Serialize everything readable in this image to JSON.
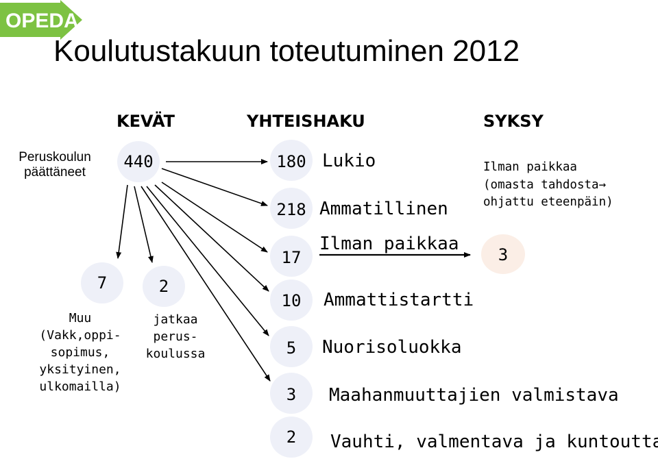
{
  "logo": {
    "text": "OPEDA",
    "color": "#7dc242"
  },
  "title": "Koulutustakuun toteutuminen 2012",
  "headers": {
    "spring": "KEVÄT",
    "joint": "YHTEISHAKU",
    "autumn": "SYKSY"
  },
  "source": {
    "label_line1": "Peruskoulun",
    "label_line2": "päättäneet",
    "value": "440"
  },
  "joint": [
    {
      "value": "180",
      "label": "Lukio"
    },
    {
      "value": "218",
      "label": "Ammatillinen"
    },
    {
      "value": "17",
      "label": "Ilman paikkaa"
    },
    {
      "value": "10",
      "label": "Ammattistartti"
    },
    {
      "value": "5",
      "label": "Nuorisoluokka"
    },
    {
      "value": "3",
      "label": "Maahanmuuttajien valmistava"
    },
    {
      "value": "2",
      "label": "Vauhti, valmentava ja kuntouttava"
    }
  ],
  "other": {
    "value": "7",
    "lines": [
      "Muu",
      "(Vakk,oppi-",
      "sopimus,",
      "yksityinen,",
      "ulkomailla)"
    ]
  },
  "continue": {
    "value": "2",
    "lines": [
      "jatkaa",
      "perus-",
      "koulussa"
    ]
  },
  "autumn": {
    "value": "3",
    "note": [
      "Ilman paikkaa",
      "(omasta tahdosta→",
      "ohjattu eteenpäin)"
    ]
  },
  "colors": {
    "circle": "#eef0f8",
    "circle_peach": "#fbeee6",
    "arrow": "#000000"
  }
}
